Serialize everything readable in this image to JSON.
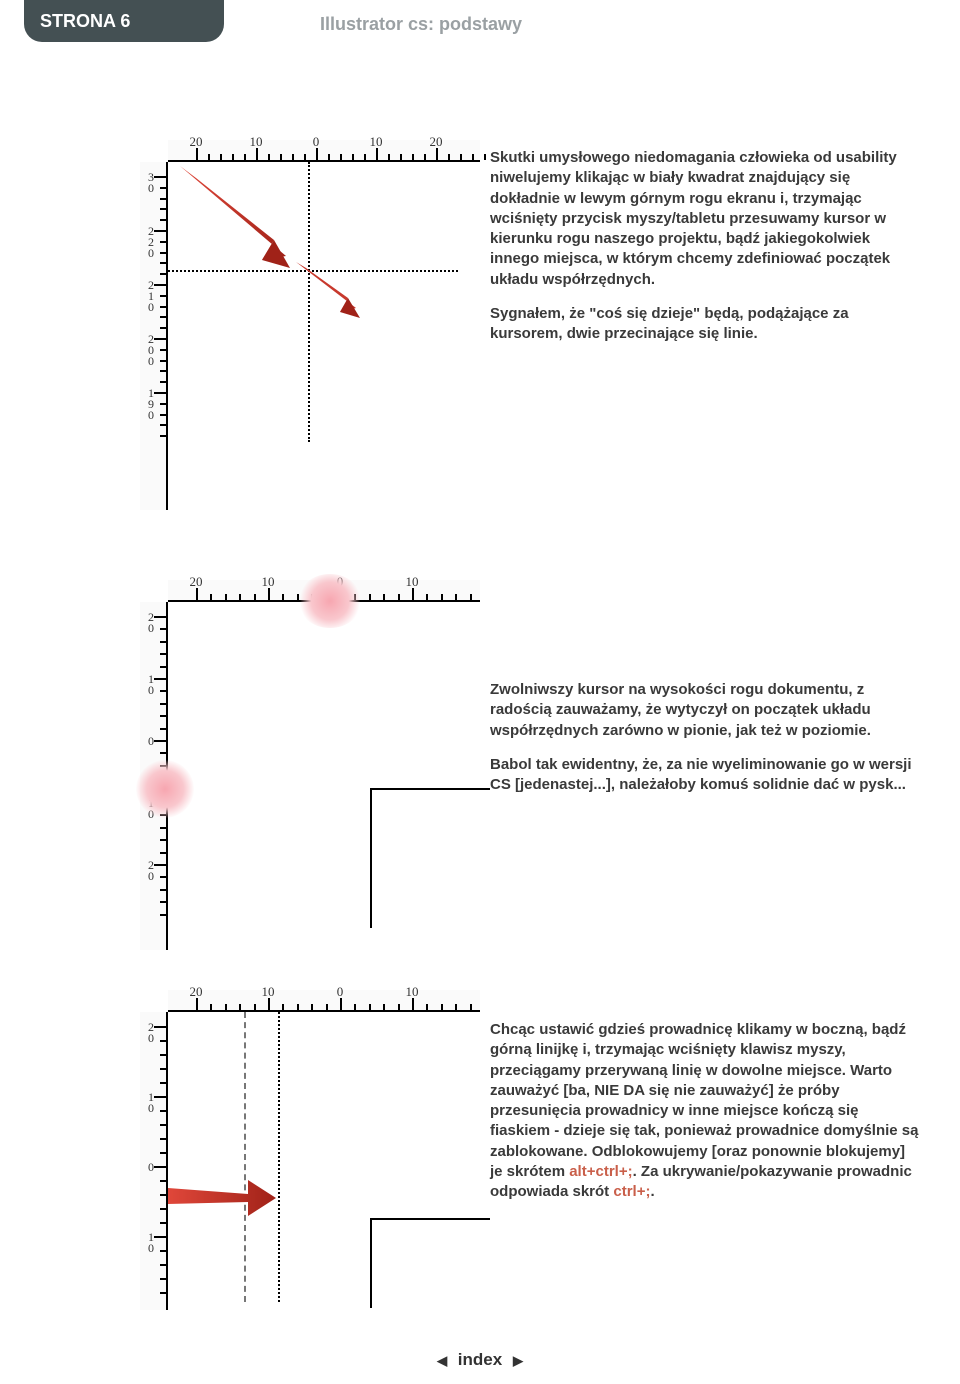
{
  "header": {
    "page_label": "STRONA 6",
    "title": "Illustrator cs: podstawy",
    "tab_bg": "#445053",
    "title_color": "#9aa0a3"
  },
  "section1": {
    "ruler_h": {
      "ticks": [
        20,
        10,
        0,
        10,
        20
      ],
      "spacing": 60
    },
    "ruler_v": {
      "stacks": [
        [
          3,
          0
        ],
        [
          2,
          2,
          0
        ],
        [
          2,
          1,
          0
        ],
        [
          2,
          0,
          0
        ],
        [
          1,
          9,
          0
        ]
      ],
      "spacing": 54
    },
    "paragraph": "Skutki umysłowego niedomagania człowieka od usability niwelujemy klikając w biały kwadrat znajdujący się dokładnie w lewym górnym rogu ekranu i, trzymając wciśnięty przycisk myszy/tabletu przesuwamy kursor w kierunku rogu naszego projektu, bądź jakiegokolwiek innego miejsca, w którym chcemy zdefiniować początek układu współrzędnych.",
    "paragraph2": "Sygnałem, że \"coś się dzieje\" będą, podążające za kursorem, dwie przecinające się linie.",
    "arrow_color": "#c8392d"
  },
  "section2": {
    "ruler_h": {
      "ticks": [
        20,
        10,
        0,
        10
      ],
      "spacing": 72
    },
    "ruler_v": {
      "stacks": [
        [
          2,
          0
        ],
        [
          1,
          0
        ],
        [
          0
        ],
        [
          1,
          0
        ],
        [
          2,
          0
        ]
      ],
      "spacing": 62
    },
    "paragraph": "Zwolniwszy kursor na wysokości rogu dokumentu, z radością zauważamy, że wytyczył on początek układu współrzędnych zarówno w pionie, jak też w poziomie.",
    "paragraph2": "Babol tak ewidentny, że, za nie wyeliminowanie go w wersji CS [jedenastej...], należałoby komuś solidnie dać w pysk...",
    "blob_color": "#f7a6b0"
  },
  "section3": {
    "ruler_h": {
      "ticks": [
        20,
        10,
        0,
        10
      ],
      "spacing": 72
    },
    "ruler_v": {
      "stacks": [
        [
          2,
          0
        ],
        [
          1,
          0
        ],
        [
          0
        ],
        [
          1,
          0
        ]
      ],
      "spacing": 70
    },
    "paragraph": "Chcąc ustawić gdzieś prowadnicę klikamy w boczną, bądź górną linijkę i, trzymając wciśnięty klawisz myszy, przeciągamy przerywaną linię w dowolne miejsce. Warto zauważyć [ba, NIE DA się nie zauważyć] że próby przesunięcia prowadnicy w inne miejsce kończą się fiaskiem - dzieje się tak, ponieważ prowadnice domyślnie są zablokowane. Odblokowujemy [oraz ponownie blokujemy] je skrótem ",
    "shortcut1": "alt+ctrl+;",
    "paragraph_mid": ". Za ukrywanie/pokazywanie prowadnic odpowiada skrót ",
    "shortcut2": "ctrl+;",
    "paragraph_end": ".",
    "arrow_color": "#c8392d",
    "accent_color": "#c95f4a"
  },
  "footer": {
    "label": "index"
  }
}
